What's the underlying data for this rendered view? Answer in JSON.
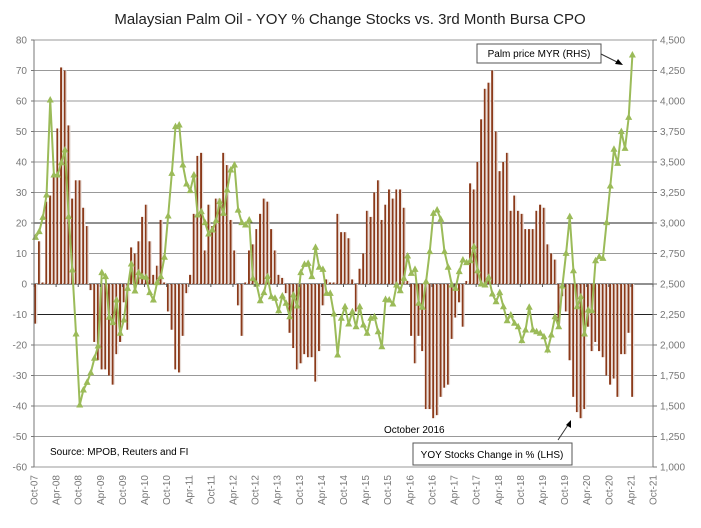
{
  "chart_data": {
    "type": "bar+line",
    "title": "Malaysian Palm Oil - YOY % Change Stocks vs. 3rd Month Bursa CPO",
    "x_start": "Oct-07",
    "x_frequency": "monthly",
    "x_tick_labels": [
      "Oct-07",
      "Apr-08",
      "Oct-08",
      "Apr-09",
      "Oct-09",
      "Apr-10",
      "Oct-10",
      "Apr-11",
      "Oct-11",
      "Apr-12",
      "Oct-12",
      "Apr-13",
      "Oct-13",
      "Apr-14",
      "Oct-14",
      "Apr-15",
      "Oct-15",
      "Apr-16",
      "Oct-16",
      "Apr-17",
      "Oct-17",
      "Apr-18",
      "Oct-18",
      "Apr-19",
      "Oct-19",
      "Apr-20",
      "Oct-20",
      "Apr-21",
      "Oct-21"
    ],
    "y_left": {
      "min": -60,
      "max": 80,
      "step": 10,
      "tick_labels": [
        "80",
        "70",
        "60",
        "50",
        "40",
        "30",
        "20",
        "10",
        "0",
        "-10",
        "-20",
        "-30",
        "-40",
        "-50",
        "-60"
      ]
    },
    "y_right": {
      "min": 1000,
      "max": 4500,
      "step": 250,
      "tick_labels": [
        "4,500",
        "4,250",
        "4,000",
        "3,750",
        "3,500",
        "3,250",
        "3,000",
        "2,750",
        "2,500",
        "2,250",
        "2,000",
        "1,750",
        "1,500",
        "1,250",
        "1,000"
      ]
    },
    "series": [
      {
        "name": "YOY Stocks Change in % (LHS)",
        "type": "bar",
        "axis": "left",
        "color": "#8B3A1A",
        "values": [
          -13,
          14,
          0.5,
          27,
          29,
          35,
          51,
          71,
          70,
          52,
          28,
          34,
          34,
          25,
          19,
          -2,
          -19,
          -25,
          -28,
          -28,
          -30,
          -33,
          -23,
          -19,
          -6,
          -15,
          12,
          10,
          14,
          22,
          26,
          14,
          3,
          6,
          21,
          0.5,
          -9,
          -15,
          -28,
          -29,
          -17,
          -3,
          3,
          23,
          42,
          43,
          11,
          26,
          19,
          28,
          28,
          43,
          39,
          21,
          11,
          -7,
          -17,
          0.5,
          11,
          13,
          18,
          23,
          28,
          27,
          18,
          11,
          3,
          2,
          -3,
          -16,
          -21,
          -28,
          -26,
          -23,
          -24,
          -24,
          -32,
          -22,
          -7,
          1.5,
          0.5,
          0.5,
          23,
          17,
          17,
          15,
          1.5,
          -9,
          5,
          10,
          24,
          22,
          30,
          34,
          21,
          26,
          31,
          28,
          31,
          31,
          25,
          1,
          -17,
          -26,
          -17,
          -22,
          -41,
          -41,
          -44,
          -43,
          -37,
          -34,
          -33,
          -18,
          -11,
          -6,
          -14,
          1,
          33,
          31,
          40,
          54,
          64,
          66,
          70,
          50,
          37,
          40,
          43,
          24,
          29,
          24,
          23,
          18,
          18,
          18,
          24,
          26,
          25,
          13,
          10,
          8,
          -13,
          -4,
          -9,
          -25,
          -37,
          -42,
          -44,
          -41,
          -14,
          -22,
          -19,
          -22,
          -24,
          -30,
          -33,
          -31,
          -37,
          -23,
          -23,
          -16,
          -37
        ]
      },
      {
        "name": "Palm price MYR (RHS)",
        "type": "line",
        "axis": "right",
        "color": "#9BBB59",
        "values": [
          2882,
          2929,
          3046,
          3229,
          4008,
          3393,
          3393,
          3494,
          3598,
          3052,
          2615,
          2090,
          1508,
          1631,
          1694,
          1773,
          1891,
          1992,
          2593,
          2560,
          2227,
          2183,
          2369,
          2096,
          2205,
          2464,
          2664,
          2443,
          2593,
          2560,
          2555,
          2429,
          2369,
          2511,
          2560,
          2719,
          3057,
          3407,
          3790,
          3803,
          3475,
          3320,
          3265,
          3393,
          3066,
          3093,
          3003,
          2910,
          2943,
          3019,
          3175,
          3079,
          3270,
          3434,
          3475,
          3106,
          3003,
          2984,
          3025,
          2546,
          2500,
          2363,
          2429,
          2560,
          2396,
          2383,
          2281,
          2402,
          2342,
          2232,
          2410,
          2320,
          2593,
          2661,
          2669,
          2560,
          2800,
          2637,
          2620,
          2423,
          2423,
          2254,
          1918,
          2219,
          2314,
          2172,
          2273,
          2150,
          2314,
          2164,
          2096,
          2219,
          2232,
          2109,
          1986,
          2374,
          2369,
          2336,
          2492,
          2445,
          2546,
          2729,
          2587,
          2620,
          2342,
          2309,
          2519,
          2765,
          3079,
          3107,
          3030,
          2765,
          2637,
          2492,
          2464,
          2601,
          2697,
          2675,
          2691,
          2806,
          2609,
          2500,
          2492,
          2555,
          2418,
          2355,
          2429,
          2314,
          2199,
          2246,
          2178,
          2150,
          2036,
          2123,
          2309,
          2123,
          2109,
          2096,
          2068,
          1959,
          2082,
          2232,
          2150,
          2484,
          2751,
          3052,
          2609,
          2314,
          2396,
          2090,
          2287,
          2281,
          2691,
          2724,
          2710,
          3003,
          3303,
          3604,
          3489,
          3749,
          3612,
          3866,
          4377
        ]
      }
    ],
    "annotations": {
      "price_label": "Palm price MYR (RHS)",
      "stocks_label": "YOY Stocks Change in % (LHS)",
      "october_note": "October 2016",
      "source": "Source: MPOB, Reuters and FI"
    },
    "grid": true,
    "legend": "none (callout boxes)"
  }
}
